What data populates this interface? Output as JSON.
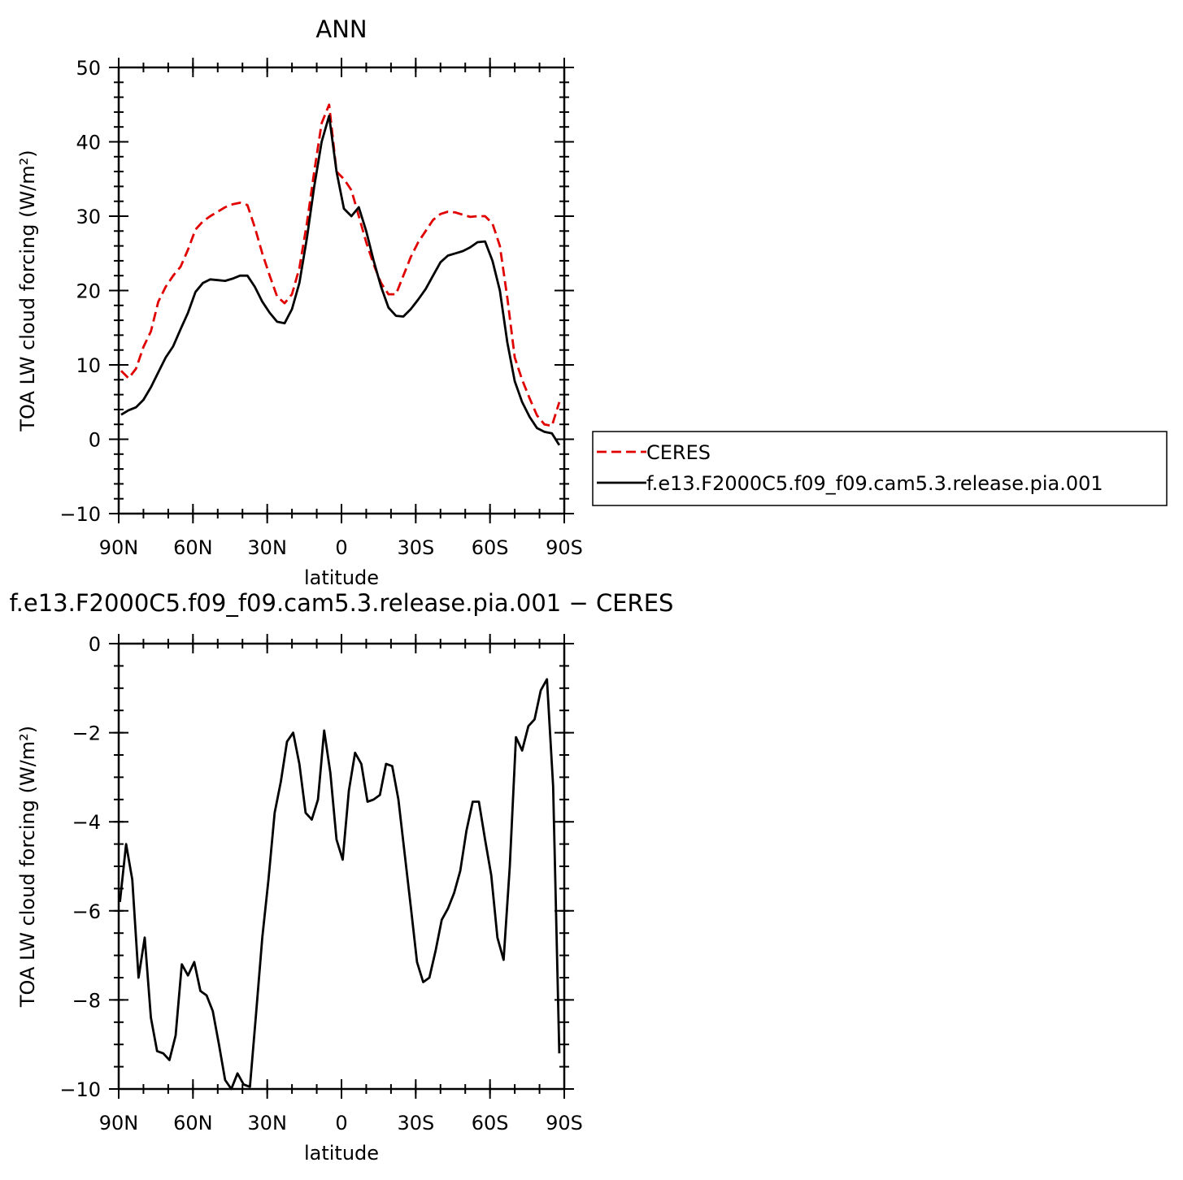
{
  "chart_data": [
    {
      "type": "line",
      "title": "ANN",
      "xlabel": "latitude",
      "ylabel": "TOA LW cloud forcing (W/m²)",
      "xlim": [
        90,
        -90
      ],
      "xticks": [
        {
          "value": 90,
          "label": "90N"
        },
        {
          "value": 60,
          "label": "60N"
        },
        {
          "value": 30,
          "label": "30N"
        },
        0,
        {
          "value": -30,
          "label": "30S"
        },
        {
          "value": -60,
          "label": "60S"
        },
        {
          "value": -90,
          "label": "90S"
        }
      ],
      "ylim": [
        -10,
        50
      ],
      "yticks": [
        {
          "value": -10,
          "label": "−10"
        },
        0,
        10,
        20,
        30,
        40,
        50
      ],
      "legend": "right",
      "x": [
        89,
        86,
        83,
        80,
        77,
        74,
        71,
        68,
        65,
        62,
        59,
        56,
        53,
        50,
        47,
        44,
        41,
        38,
        35,
        32,
        29,
        26,
        23,
        20,
        17,
        14,
        11,
        8,
        5,
        2,
        -1,
        -4,
        -7,
        -10,
        -13,
        -16,
        -19,
        -22,
        -25,
        -28,
        -31,
        -34,
        -37,
        -40,
        -43,
        -46,
        -49,
        -52,
        -55,
        -58,
        -61,
        -64,
        -67,
        -70,
        -73,
        -76,
        -79,
        -82,
        -85,
        -88
      ],
      "series": [
        {
          "name": "CERES",
          "color": "#e00000",
          "dashed": true,
          "values": [
            9.2,
            8.2,
            9.5,
            12.4,
            14.5,
            18.5,
            20.5,
            22,
            23.2,
            25.5,
            28.2,
            29.3,
            30.0,
            30.6,
            31.2,
            31.6,
            31.8,
            31.5,
            28.5,
            25,
            22,
            19.2,
            18.3,
            19.5,
            23,
            29,
            36,
            42.5,
            45,
            36,
            35,
            33.5,
            30,
            26.5,
            23.5,
            21,
            19.5,
            19.5,
            22,
            24.5,
            26.5,
            28,
            29.5,
            30.3,
            30.6,
            30.5,
            30.2,
            29.9,
            30,
            30,
            29,
            26,
            19,
            11,
            8,
            5.5,
            3.2,
            2,
            1.8,
            5
          ]
        },
        {
          "name": "f.e13.F2000C5.f09_f09.cam5.3.release.pia.001",
          "color": "#000000",
          "dashed": false,
          "values": [
            3.3,
            3.9,
            4.3,
            5.3,
            7,
            9,
            11,
            12.5,
            14.8,
            17,
            19.8,
            21,
            21.5,
            21.4,
            21.3,
            21.6,
            22,
            22,
            20.5,
            18.5,
            17,
            15.8,
            15.6,
            17.5,
            21,
            27,
            34,
            40,
            43.5,
            36,
            31,
            30,
            31.2,
            28,
            24,
            20.5,
            17.7,
            16.6,
            16.5,
            17.5,
            18.8,
            20.2,
            22,
            23.8,
            24.7,
            25,
            25.3,
            25.8,
            26.5,
            26.6,
            24,
            20,
            13,
            7.8,
            5,
            3,
            1.5,
            1.0,
            0.8,
            -0.8
          ]
        }
      ]
    },
    {
      "type": "line",
      "title": "f.e13.F2000C5.f09_f09.cam5.3.release.pia.001 − CERES",
      "xlabel": "latitude",
      "ylabel": "TOA LW cloud forcing (W/m²)",
      "xlim": [
        90,
        -90
      ],
      "xticks": [
        {
          "value": 90,
          "label": "90N"
        },
        {
          "value": 60,
          "label": "60N"
        },
        {
          "value": 30,
          "label": "30N"
        },
        0,
        {
          "value": -30,
          "label": "30S"
        },
        {
          "value": -60,
          "label": "60S"
        },
        {
          "value": -90,
          "label": "90S"
        }
      ],
      "ylim": [
        -10,
        0
      ],
      "yticks": [
        {
          "value": -10,
          "label": "−10"
        },
        {
          "value": -8,
          "label": "−8"
        },
        {
          "value": -6,
          "label": "−6"
        },
        {
          "value": -4,
          "label": "−4"
        },
        {
          "value": -2,
          "label": "−2"
        },
        0
      ],
      "x": [
        89.5,
        87,
        84.5,
        82,
        79.5,
        77,
        74.5,
        72,
        69.5,
        67,
        64.5,
        62,
        59.5,
        57,
        54.5,
        52,
        49.5,
        47,
        44.5,
        42,
        39.5,
        37,
        34.5,
        32,
        29.5,
        27,
        24.5,
        22,
        19.5,
        17,
        14.5,
        12,
        9.5,
        7,
        4.5,
        2,
        -0.5,
        -3,
        -5.5,
        -8,
        -10.5,
        -13,
        -15.5,
        -18,
        -20.5,
        -23,
        -25.5,
        -28,
        -30.5,
        -33,
        -35.5,
        -38,
        -40.5,
        -43,
        -45.5,
        -48,
        -50.5,
        -53,
        -55.5,
        -58,
        -60.5,
        -63,
        -65.5,
        -68,
        -70.5,
        -73,
        -75.5,
        -78,
        -80.5,
        -83,
        -85.5,
        -88
      ],
      "series": [
        {
          "name": null,
          "color": "#000000",
          "dashed": false,
          "values": [
            -5.8,
            -4.5,
            -5.3,
            -7.5,
            -6.6,
            -8.4,
            -9.15,
            -9.2,
            -9.35,
            -8.8,
            -7.2,
            -7.45,
            -7.15,
            -7.8,
            -7.9,
            -8.25,
            -9.0,
            -9.8,
            -10.0,
            -9.65,
            -9.9,
            -9.95,
            -8.3,
            -6.6,
            -5.3,
            -3.8,
            -3.1,
            -2.2,
            -2.0,
            -2.7,
            -3.8,
            -3.95,
            -3.5,
            -1.95,
            -2.9,
            -4.4,
            -4.85,
            -3.3,
            -2.45,
            -2.7,
            -3.55,
            -3.5,
            -3.4,
            -2.7,
            -2.75,
            -3.5,
            -4.7,
            -5.9,
            -7.15,
            -7.6,
            -7.5,
            -6.9,
            -6.2,
            -5.95,
            -5.6,
            -5.1,
            -4.2,
            -3.55,
            -3.55,
            -4.4,
            -5.2,
            -6.6,
            -7.1,
            -5.0,
            -2.1,
            -2.4,
            -1.85,
            -1.7,
            -1.05,
            -0.8,
            -3.2,
            -9.2
          ]
        }
      ]
    }
  ]
}
